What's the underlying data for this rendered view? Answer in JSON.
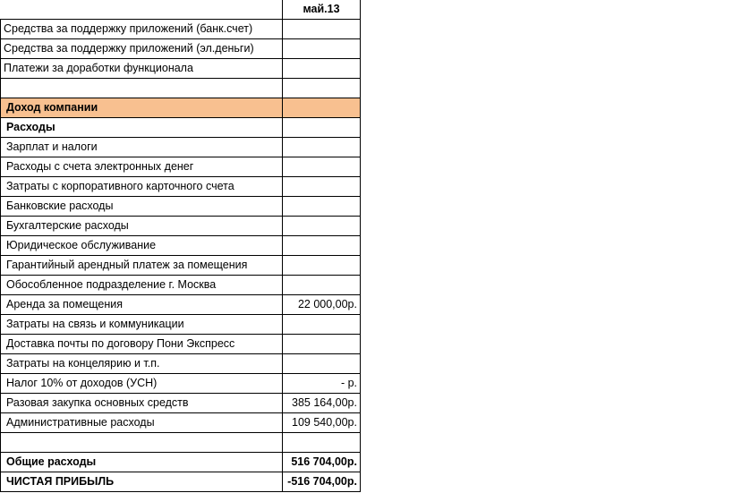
{
  "sheet": {
    "column_header": "май.13",
    "highlight_color": "#F8C090",
    "rows": [
      {
        "label": "Средства за поддержку приложений (банк.счет)",
        "value": ""
      },
      {
        "label": "Средства за поддержку приложений (эл.деньги)",
        "value": ""
      },
      {
        "label": "Платежи за доработки функционала",
        "value": ""
      },
      {
        "label": "",
        "value": ""
      },
      {
        "label": "Доход компании",
        "value": "",
        "bold": true,
        "highlight": true,
        "indent": true
      },
      {
        "label": "Расходы",
        "value": "",
        "bold": true,
        "indent": true
      },
      {
        "label": "Зарплат и налоги",
        "value": "",
        "indent": true
      },
      {
        "label": "Расходы с счета электронных денег",
        "value": "",
        "indent": true
      },
      {
        "label": "Затраты с корпоративного карточного счета",
        "value": "",
        "indent": true
      },
      {
        "label": "Банковские расходы",
        "value": "",
        "indent": true
      },
      {
        "label": "Бухгалтерские расходы",
        "value": "",
        "indent": true
      },
      {
        "label": "Юридическое обслуживание",
        "value": "",
        "indent": true
      },
      {
        "label": "Гарантийный арендный платеж за помещения",
        "value": "",
        "indent": true
      },
      {
        "label": "Обособленное подразделение г. Москва",
        "value": "",
        "indent": true
      },
      {
        "label": "Аренда за помещения",
        "value": "22 000,00р.",
        "indent": true
      },
      {
        "label": "Затраты на связь и коммуникации",
        "value": "",
        "indent": true
      },
      {
        "label": "Доставка почты по договору Пони Экспресс",
        "value": "",
        "indent": true
      },
      {
        "label": "Затраты на концелярию и т.п.",
        "value": "",
        "indent": true
      },
      {
        "label": "Налог 10% от доходов (УСН)",
        "value": "-  р.",
        "indent": true
      },
      {
        "label": "Разовая закупка основных средств",
        "value": "385 164,00р.",
        "indent": true
      },
      {
        "label": "Административные расходы",
        "value": "109 540,00р.",
        "indent": true
      },
      {
        "label": "",
        "value": ""
      },
      {
        "label": "Общие расходы",
        "value": "516 704,00р.",
        "bold": true,
        "indent": true
      },
      {
        "label": "ЧИСТАЯ ПРИБЫЛЬ",
        "value": "-516 704,00р.",
        "bold": true,
        "indent": true
      }
    ]
  }
}
